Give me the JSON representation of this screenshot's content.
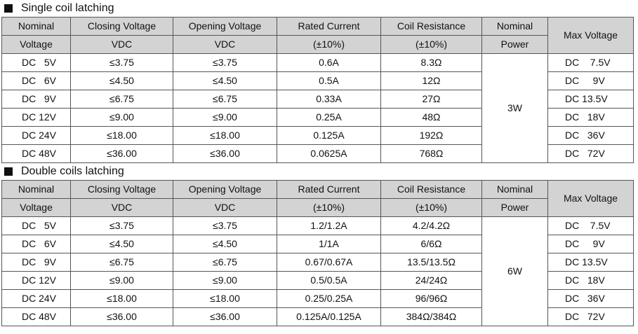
{
  "sections": [
    {
      "title": "Single coil latching",
      "headers": {
        "nominal_voltage": [
          "Nominal",
          "Voltage"
        ],
        "closing_voltage": [
          "Closing Voltage",
          "VDC"
        ],
        "opening_voltage": [
          "Opening Voltage",
          "VDC"
        ],
        "rated_current": [
          "Rated Current",
          "(±10%)"
        ],
        "coil_resistance": [
          "Coil Resistance",
          "(±10%)"
        ],
        "nominal_power": [
          "Nominal",
          "Power"
        ],
        "max_voltage": "Max Voltage"
      },
      "nominal_power_value": "3W",
      "rows": [
        {
          "nominal": "DC   5V",
          "closing": "≤3.75",
          "opening": "≤3.75",
          "current": "0.6A",
          "resistance": "8.3Ω",
          "max": "DC    7.5V"
        },
        {
          "nominal": "DC   6V",
          "closing": "≤4.50",
          "opening": "≤4.50",
          "current": "0.5A",
          "resistance": "12Ω",
          "max": "DC     9V"
        },
        {
          "nominal": "DC   9V",
          "closing": "≤6.75",
          "opening": "≤6.75",
          "current": "0.33A",
          "resistance": "27Ω",
          "max": "DC 13.5V"
        },
        {
          "nominal": "DC 12V",
          "closing": "≤9.00",
          "opening": "≤9.00",
          "current": "0.25A",
          "resistance": "48Ω",
          "max": "DC   18V"
        },
        {
          "nominal": "DC 24V",
          "closing": "≤18.00",
          "opening": "≤18.00",
          "current": "0.125A",
          "resistance": "192Ω",
          "max": "DC   36V"
        },
        {
          "nominal": "DC 48V",
          "closing": "≤36.00",
          "opening": "≤36.00",
          "current": "0.0625A",
          "resistance": "768Ω",
          "max": "DC   72V"
        }
      ]
    },
    {
      "title": "Double coils latching",
      "headers": {
        "nominal_voltage": [
          "Nominal",
          "Voltage"
        ],
        "closing_voltage": [
          "Closing Voltage",
          "VDC"
        ],
        "opening_voltage": [
          "Opening Voltage",
          "VDC"
        ],
        "rated_current": [
          "Rated Current",
          "(±10%)"
        ],
        "coil_resistance": [
          "Coil Resistance",
          "(±10%)"
        ],
        "nominal_power": [
          "Nominal",
          "Power"
        ],
        "max_voltage": "Max Voltage"
      },
      "nominal_power_value": "6W",
      "rows": [
        {
          "nominal": "DC   5V",
          "closing": "≤3.75",
          "opening": "≤3.75",
          "current": "1.2/1.2A",
          "resistance": "4.2/4.2Ω",
          "max": "DC    7.5V"
        },
        {
          "nominal": "DC   6V",
          "closing": "≤4.50",
          "opening": "≤4.50",
          "current": "1/1A",
          "resistance": "6/6Ω",
          "max": "DC     9V"
        },
        {
          "nominal": "DC   9V",
          "closing": "≤6.75",
          "opening": "≤6.75",
          "current": "0.67/0.67A",
          "resistance": "13.5/13.5Ω",
          "max": "DC 13.5V"
        },
        {
          "nominal": "DC 12V",
          "closing": "≤9.00",
          "opening": "≤9.00",
          "current": "0.5/0.5A",
          "resistance": "24/24Ω",
          "max": "DC   18V"
        },
        {
          "nominal": "DC 24V",
          "closing": "≤18.00",
          "opening": "≤18.00",
          "current": "0.25/0.25A",
          "resistance": "96/96Ω",
          "max": "DC   36V"
        },
        {
          "nominal": "DC 48V",
          "closing": "≤36.00",
          "opening": "≤36.00",
          "current": "0.125A/0.125A",
          "resistance": "384Ω/384Ω",
          "max": "DC   72V"
        }
      ]
    }
  ]
}
